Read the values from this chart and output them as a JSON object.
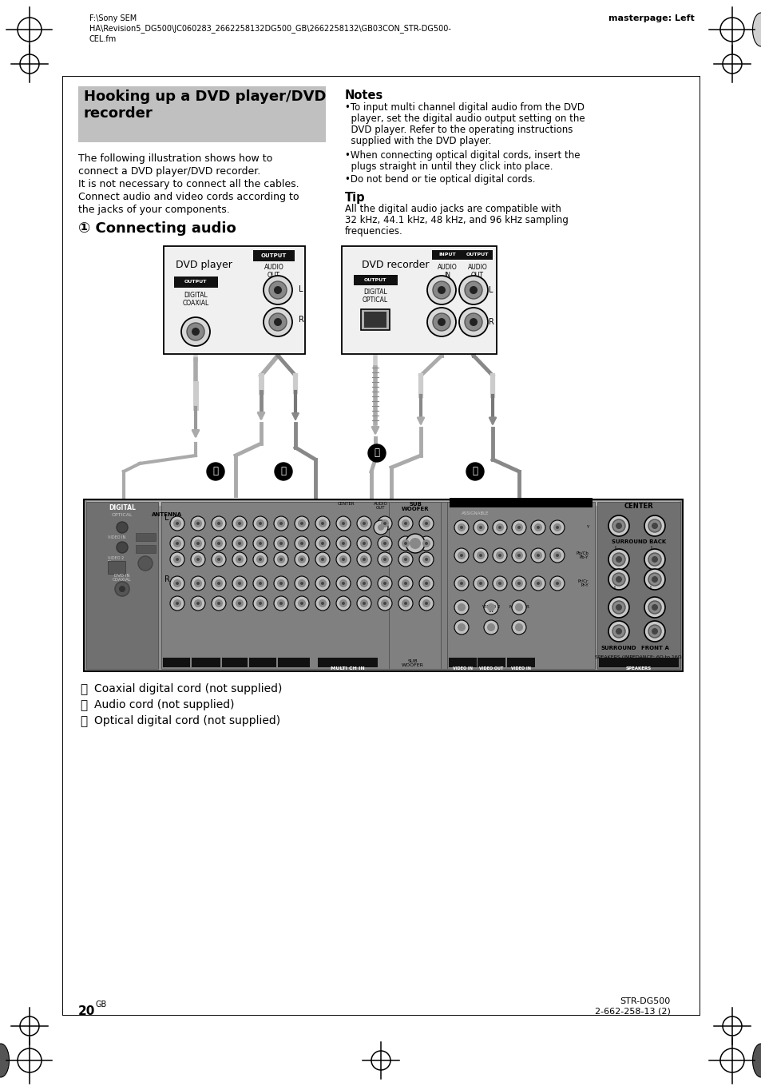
{
  "bg_color": "#ffffff",
  "title_bg_color": "#c0c0c0",
  "header_left_line1": "F:\\Sony SEM",
  "header_left_line2": "HA\\Revision5_DG500\\JC060283_2662258132DG500_GB\\2662258132\\GB03CON_STR-DG500-",
  "header_left_line3": "CEL.fm",
  "header_right": "masterpage: Left",
  "footer_right_line1": "STR-DG500",
  "footer_right_line2": "2-662-258-13 (2)",
  "legend_a": "Coaxial digital cord (not supplied)",
  "legend_b": "Audio cord (not supplied)",
  "legend_c": "Optical digital cord (not supplied)",
  "notes_title": "Notes",
  "tip_title": "Tip"
}
